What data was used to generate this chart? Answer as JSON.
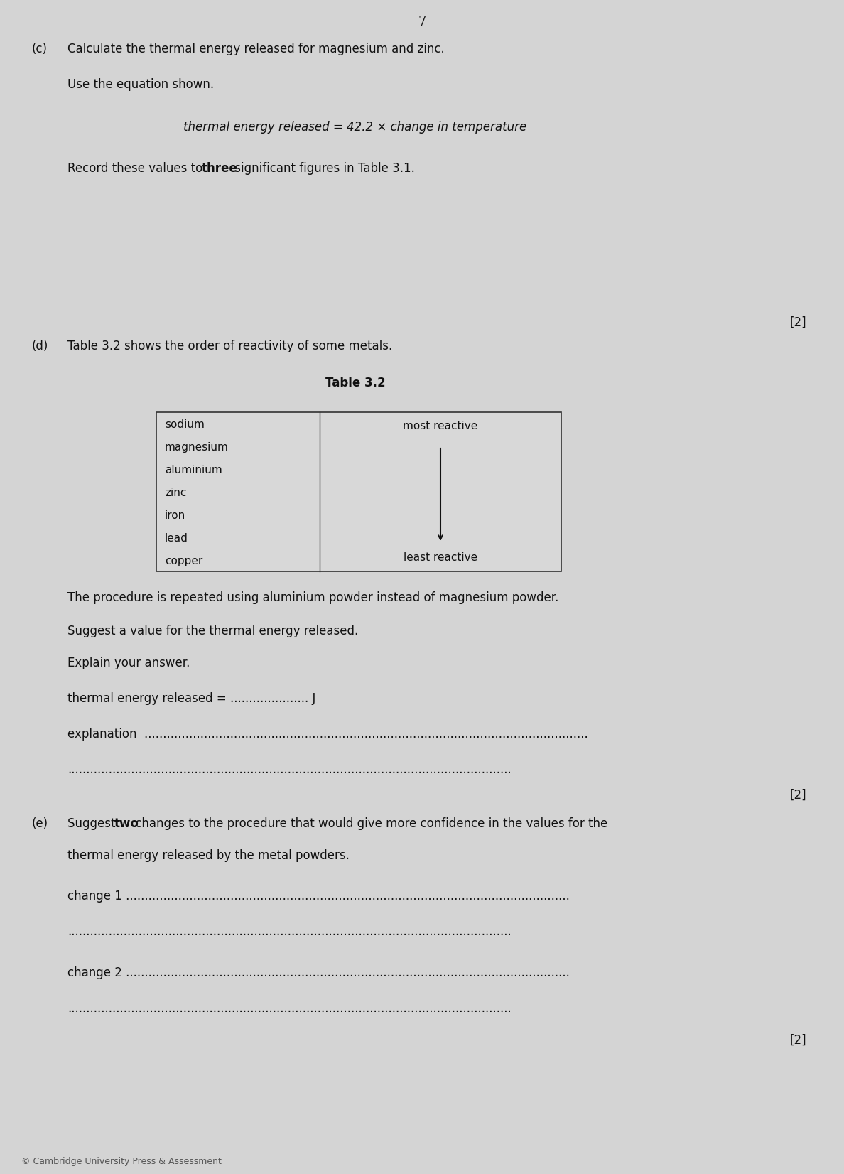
{
  "page_number": "7",
  "bg_color": "#d4d4d4",
  "text_color": "#111111",
  "section_c": {
    "label": "(c)",
    "line1": "Calculate the thermal energy released for magnesium and zinc.",
    "line2": "Use the equation shown.",
    "equation": "thermal energy released = 42.2 × change in temperature",
    "line3_normal": "Record these values to ",
    "line3_bold": "three",
    "line3_end": " significant figures in Table 3.1.",
    "marks": "[2]"
  },
  "section_d": {
    "label": "(d)",
    "line1": "Table 3.2 shows the order of reactivity of some metals.",
    "table_title": "Table 3.2",
    "table_metals": [
      "sodium",
      "magnesium",
      "aluminium",
      "zinc",
      "iron",
      "lead",
      "copper"
    ],
    "table_top_label": "most reactive",
    "table_bottom_label": "least reactive",
    "line2": "The procedure is repeated using aluminium powder instead of magnesium powder.",
    "line3": "Suggest a value for the thermal energy released.",
    "line4": "Explain your answer.",
    "thermal_line": "thermal energy released = ..................... J",
    "explanation_line": "explanation  .......................................................................................................................",
    "dotted_line": ".......................................................................................................................",
    "marks": "[2]"
  },
  "section_e": {
    "label": "(e)",
    "line1a": "Suggest ",
    "line1b": "two",
    "line1c": " changes to the procedure that would give more confidence in the values for the",
    "line2": "thermal energy released by the metal powders.",
    "change1_label": "change 1",
    "change1_dots": " .......................................................................................................................",
    "change1_dots2": ".......................................................................................................................",
    "change2_label": "change 2",
    "change2_dots": " .......................................................................................................................",
    "change2_dots2": ".......................................................................................................................",
    "marks": "[2]",
    "footer": "© Cambridge University Press & Assessment"
  }
}
